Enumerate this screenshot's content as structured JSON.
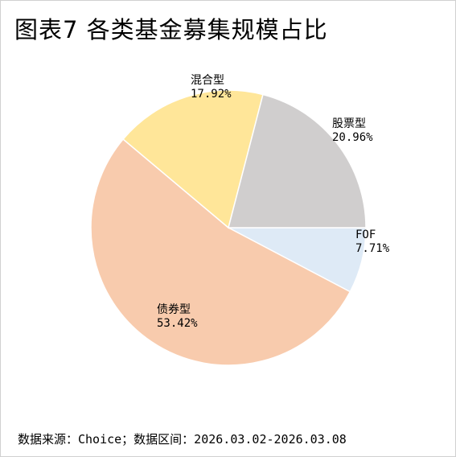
{
  "title": "图表7 各类基金募集规模占比",
  "source": "数据来源：Choice；数据区间：2026.03.02-2026.03.08",
  "chart_data": {
    "type": "pie",
    "title": "图表7 各类基金募集规模占比",
    "slices": [
      {
        "name": "FOF",
        "value": 7.71,
        "label": "7.71%",
        "color": "#deeaf6"
      },
      {
        "name": "债券型",
        "value": 53.42,
        "label": "53.42%",
        "color": "#f8cbad"
      },
      {
        "name": "混合型",
        "value": 17.92,
        "label": "17.92%",
        "color": "#ffe699"
      },
      {
        "name": "股票型",
        "value": 20.96,
        "label": "20.96%",
        "color": "#d0cece"
      }
    ],
    "start": "3 o'clock",
    "direction": "clockwise",
    "legend": "none",
    "grid": false
  }
}
